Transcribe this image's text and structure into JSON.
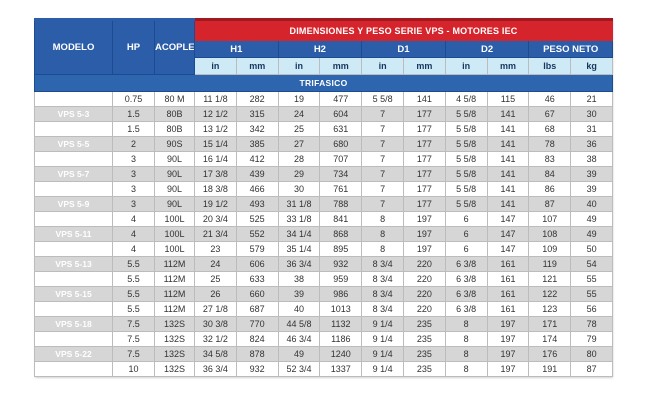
{
  "table": {
    "span_header": "DIMENSIONES Y PESO SERIE VPS - MOTORES IEC",
    "section_header": "TRIFASICO",
    "columns": {
      "modelo": "MODELO",
      "hp": "HP",
      "acople": "ACOPLE",
      "groups": [
        {
          "label": "H1",
          "units": [
            "in",
            "mm"
          ]
        },
        {
          "label": "H2",
          "units": [
            "in",
            "mm"
          ]
        },
        {
          "label": "D1",
          "units": [
            "in",
            "mm"
          ]
        },
        {
          "label": "D2",
          "units": [
            "in",
            "mm"
          ]
        },
        {
          "label": "PESO NETO",
          "units": [
            "lbs",
            "kg"
          ]
        }
      ]
    },
    "rows": [
      {
        "modelo": "VPS 5-2",
        "hp": "0.75",
        "acople": "80 M",
        "values": [
          "11 1/8",
          "282",
          "19",
          "477",
          "5 5/8",
          "141",
          "4 5/8",
          "115",
          "46",
          "21"
        ]
      },
      {
        "modelo": "VPS 5-3",
        "hp": "1.5",
        "acople": "80B",
        "values": [
          "12 1/2",
          "315",
          "24",
          "604",
          "7",
          "177",
          "5 5/8",
          "141",
          "67",
          "30"
        ]
      },
      {
        "modelo": "VPS 5-4",
        "hp": "1.5",
        "acople": "80B",
        "values": [
          "13 1/2",
          "342",
          "25",
          "631",
          "7",
          "177",
          "5 5/8",
          "141",
          "68",
          "31"
        ]
      },
      {
        "modelo": "VPS 5-5",
        "hp": "2",
        "acople": "90S",
        "values": [
          "15 1/4",
          "385",
          "27",
          "680",
          "7",
          "177",
          "5 5/8",
          "141",
          "78",
          "36"
        ]
      },
      {
        "modelo": "VPS 5-6",
        "hp": "3",
        "acople": "90L",
        "values": [
          "16 1/4",
          "412",
          "28",
          "707",
          "7",
          "177",
          "5 5/8",
          "141",
          "83",
          "38"
        ]
      },
      {
        "modelo": "VPS 5-7",
        "hp": "3",
        "acople": "90L",
        "values": [
          "17 3/8",
          "439",
          "29",
          "734",
          "7",
          "177",
          "5 5/8",
          "141",
          "84",
          "39"
        ]
      },
      {
        "modelo": "VPS 5-8",
        "hp": "3",
        "acople": "90L",
        "values": [
          "18 3/8",
          "466",
          "30",
          "761",
          "7",
          "177",
          "5 5/8",
          "141",
          "86",
          "39"
        ]
      },
      {
        "modelo": "VPS 5-9",
        "hp": "3",
        "acople": "90L",
        "values": [
          "19 1/2",
          "493",
          "31 1/8",
          "788",
          "7",
          "177",
          "5 5/8",
          "141",
          "87",
          "40"
        ]
      },
      {
        "modelo": "VPS 5-10",
        "hp": "4",
        "acople": "100L",
        "values": [
          "20 3/4",
          "525",
          "33 1/8",
          "841",
          "8",
          "197",
          "6",
          "147",
          "107",
          "49"
        ]
      },
      {
        "modelo": "VPS 5-11",
        "hp": "4",
        "acople": "100L",
        "values": [
          "21 3/4",
          "552",
          "34 1/4",
          "868",
          "8",
          "197",
          "6",
          "147",
          "108",
          "49"
        ]
      },
      {
        "modelo": "VPS 5-12",
        "hp": "4",
        "acople": "100L",
        "values": [
          "23",
          "579",
          "35 1/4",
          "895",
          "8",
          "197",
          "6",
          "147",
          "109",
          "50"
        ]
      },
      {
        "modelo": "VPS 5-13",
        "hp": "5.5",
        "acople": "112M",
        "values": [
          "24",
          "606",
          "36 3/4",
          "932",
          "8 3/4",
          "220",
          "6 3/8",
          "161",
          "119",
          "54"
        ]
      },
      {
        "modelo": "VPS 5-14",
        "hp": "5.5",
        "acople": "112M",
        "values": [
          "25",
          "633",
          "38",
          "959",
          "8 3/4",
          "220",
          "6 3/8",
          "161",
          "121",
          "55"
        ]
      },
      {
        "modelo": "VPS 5-15",
        "hp": "5.5",
        "acople": "112M",
        "values": [
          "26",
          "660",
          "39",
          "986",
          "8 3/4",
          "220",
          "6 3/8",
          "161",
          "122",
          "55"
        ]
      },
      {
        "modelo": "VPS 5-16",
        "hp": "5.5",
        "acople": "112M",
        "values": [
          "27 1/8",
          "687",
          "40",
          "1013",
          "8 3/4",
          "220",
          "6 3/8",
          "161",
          "123",
          "56"
        ]
      },
      {
        "modelo": "VPS 5-18",
        "hp": "7.5",
        "acople": "132S",
        "values": [
          "30 3/8",
          "770",
          "44 5/8",
          "1132",
          "9 1/4",
          "235",
          "8",
          "197",
          "171",
          "78"
        ]
      },
      {
        "modelo": "VPS 5-20",
        "hp": "7.5",
        "acople": "132S",
        "values": [
          "32 1/2",
          "824",
          "46 3/4",
          "1186",
          "9 1/4",
          "235",
          "8",
          "197",
          "174",
          "79"
        ]
      },
      {
        "modelo": "VPS 5-22",
        "hp": "7.5",
        "acople": "132S",
        "values": [
          "34 5/8",
          "878",
          "49",
          "1240",
          "9 1/4",
          "235",
          "8",
          "197",
          "176",
          "80"
        ]
      },
      {
        "modelo": "VPS 5-24",
        "hp": "10",
        "acople": "132S",
        "values": [
          "36 3/4",
          "932",
          "52 3/4",
          "1337",
          "9 1/4",
          "235",
          "8",
          "197",
          "191",
          "87"
        ]
      }
    ]
  },
  "colors": {
    "red": "#d6242c",
    "red_dark_edge": "#9e1a20",
    "header_blue": "#2b5da9",
    "section_band_blue": "#2d66ae",
    "unit_row_bg": "#cdeaf6",
    "unit_row_text": "#17365d",
    "alt_row_gray": "#d6d6d6",
    "gridline": "#bcbcbc"
  }
}
